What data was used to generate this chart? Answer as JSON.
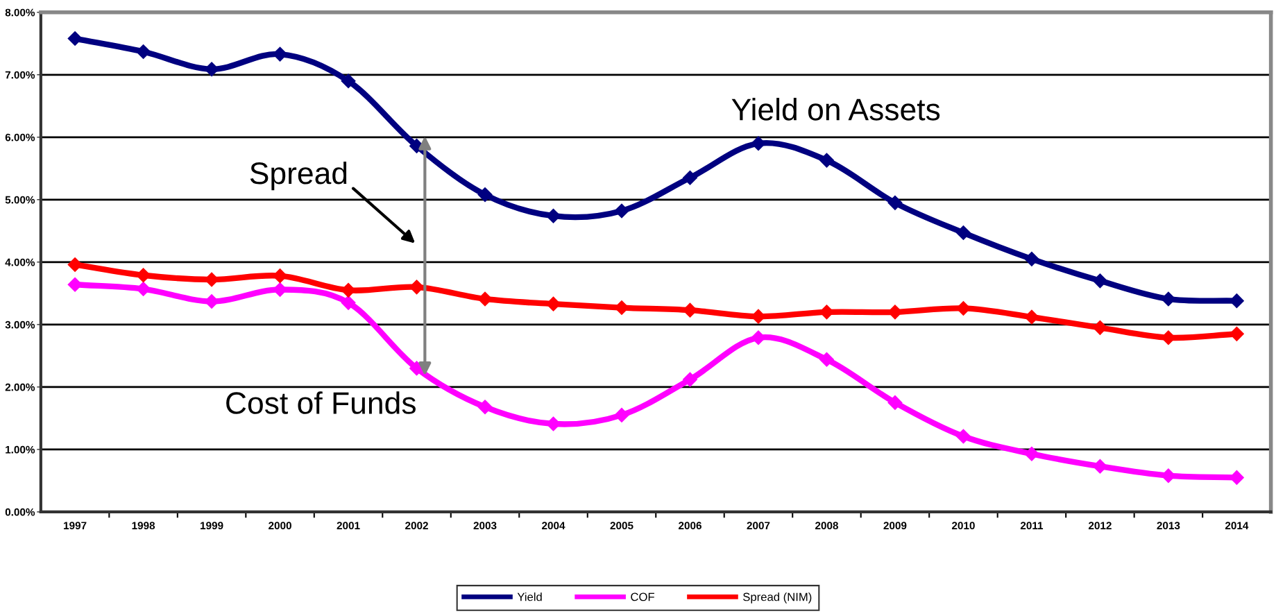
{
  "chart_data": {
    "type": "line",
    "categories": [
      "1997",
      "1998",
      "1999",
      "2000",
      "2001",
      "2002",
      "2003",
      "2004",
      "2005",
      "2006",
      "2007",
      "2008",
      "2009",
      "2010",
      "2011",
      "2012",
      "2013",
      "2014"
    ],
    "series": [
      {
        "name": "Yield",
        "color": "#000080",
        "values": [
          7.58,
          7.37,
          7.09,
          7.33,
          6.9,
          5.86,
          5.08,
          4.74,
          4.82,
          5.35,
          5.9,
          5.63,
          4.95,
          4.47,
          4.05,
          3.7,
          3.41,
          3.38
        ]
      },
      {
        "name": "COF",
        "color": "#ff00ff",
        "values": [
          3.64,
          3.57,
          3.37,
          3.56,
          3.35,
          2.3,
          1.68,
          1.41,
          1.55,
          2.12,
          2.79,
          2.44,
          1.75,
          1.21,
          0.93,
          0.73,
          0.58,
          0.55
        ]
      },
      {
        "name": "Spread (NIM)",
        "color": "#ff0000",
        "values": [
          3.96,
          3.79,
          3.72,
          3.78,
          3.55,
          3.6,
          3.41,
          3.33,
          3.27,
          3.23,
          3.13,
          3.2,
          3.2,
          3.26,
          3.12,
          2.95,
          2.79,
          2.85
        ]
      }
    ],
    "ylim": [
      0,
      8
    ],
    "yticks": [
      {
        "value": 0,
        "label": "0.00%"
      },
      {
        "value": 1,
        "label": "1.00%"
      },
      {
        "value": 2,
        "label": "2.00%"
      },
      {
        "value": 3,
        "label": "3.00%"
      },
      {
        "value": 4,
        "label": "4.00%"
      },
      {
        "value": 5,
        "label": "5.00%"
      },
      {
        "value": 6,
        "label": "6.00%"
      },
      {
        "value": 7,
        "label": "7.00%"
      },
      {
        "value": 8,
        "label": "8.00%"
      }
    ],
    "grid": "y",
    "marker": "diamond",
    "line_style": "solid",
    "legend": "bottom",
    "annotations": [
      "Yield on Assets",
      "Spread",
      "Cost of Funds"
    ]
  }
}
